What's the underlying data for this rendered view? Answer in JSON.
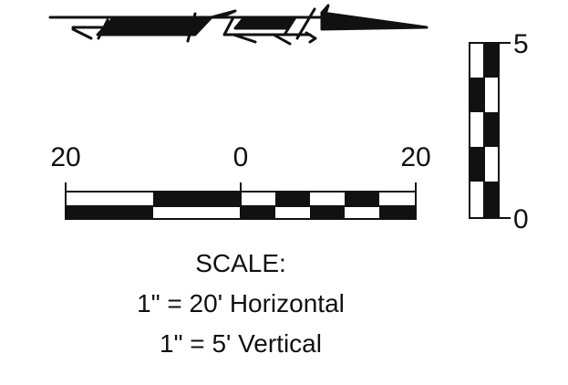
{
  "horizontal_scale": {
    "labels": [
      "20",
      "0",
      "20"
    ]
  },
  "vertical_scale": {
    "top_label": "5",
    "bottom_label": "0"
  },
  "caption": {
    "title": "SCALE:",
    "horizontal": "1\" = 20' Horizontal",
    "vertical": "1\" = 5' Vertical"
  },
  "colors": {
    "ink": "#111111",
    "paper": "#ffffff"
  },
  "icons": {
    "north_arrow": "north-arrow-icon"
  }
}
